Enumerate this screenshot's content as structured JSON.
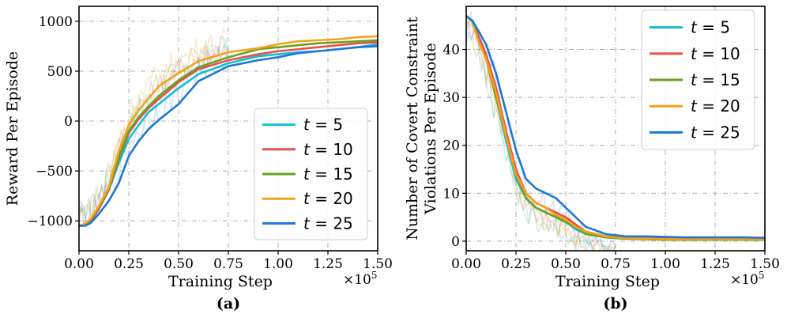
{
  "chart_data": [
    {
      "type": "line",
      "panel": "a",
      "caption": "(a)",
      "xlabel": "Training Step",
      "ylabel": "Reward Per Episode",
      "x_multiplier": "×10",
      "x_multiplier_exp": "5",
      "xlim": [
        0,
        1.5
      ],
      "ylim": [
        -1300,
        1150
      ],
      "xticks": [
        0,
        0.25,
        0.5,
        0.75,
        1.0,
        1.25,
        1.5
      ],
      "xtick_labels": [
        "0.00",
        "0.25",
        "0.50",
        "0.75",
        "1.00",
        "1.25",
        "1.50"
      ],
      "yticks": [
        -1000,
        -500,
        0,
        500,
        1000
      ],
      "ytick_labels": [
        "−1000",
        "−500",
        "0",
        "500",
        "1000"
      ],
      "legend_position": "lower-right",
      "x": [
        0,
        0.03,
        0.06,
        0.1,
        0.15,
        0.2,
        0.25,
        0.3,
        0.35,
        0.4,
        0.5,
        0.6,
        0.75,
        0.9,
        1.0,
        1.1,
        1.2,
        1.3,
        1.4,
        1.5
      ],
      "series": [
        {
          "name": "t = 5",
          "label_var": "t",
          "label_val": "5",
          "color": "#17becf",
          "values": [
            -1050,
            -1040,
            -1010,
            -880,
            -690,
            -420,
            -180,
            -40,
            90,
            170,
            330,
            470,
            580,
            650,
            670,
            690,
            700,
            720,
            740,
            770
          ]
        },
        {
          "name": "t = 10",
          "label_var": "t",
          "label_val": "10",
          "color": "#e8504a",
          "values": [
            -1050,
            -1040,
            -1000,
            -880,
            -690,
            -380,
            -120,
            20,
            130,
            220,
            390,
            520,
            610,
            670,
            700,
            720,
            740,
            760,
            780,
            790
          ]
        },
        {
          "name": "t = 15",
          "label_var": "t",
          "label_val": "15",
          "color": "#6aa121",
          "values": [
            -1050,
            -1040,
            -990,
            -860,
            -680,
            -360,
            -100,
            40,
            150,
            250,
            410,
            540,
            640,
            720,
            740,
            760,
            780,
            790,
            800,
            810
          ]
        },
        {
          "name": "t = 20",
          "label_var": "t",
          "label_val": "20",
          "color": "#f4a11a",
          "values": [
            -1050,
            -1030,
            -980,
            -850,
            -660,
            -300,
            -40,
            110,
            230,
            350,
            480,
            600,
            690,
            730,
            770,
            800,
            810,
            820,
            840,
            850
          ]
        },
        {
          "name": "t = 25",
          "label_var": "t",
          "label_val": "25",
          "color": "#1f77d4",
          "values": [
            -1050,
            -1050,
            -1020,
            -930,
            -800,
            -620,
            -350,
            -200,
            -80,
            10,
            170,
            400,
            550,
            610,
            640,
            680,
            700,
            720,
            740,
            750
          ]
        }
      ]
    },
    {
      "type": "line",
      "panel": "b",
      "caption": "(b)",
      "xlabel": "Training Step",
      "ylabel_line1": "Number of Covert Constraint",
      "ylabel_line2": "Violations Per Episode",
      "x_multiplier": "×10",
      "x_multiplier_exp": "5",
      "xlim": [
        0,
        1.5
      ],
      "ylim": [
        -2,
        49
      ],
      "xticks": [
        0,
        0.25,
        0.5,
        0.75,
        1.0,
        1.25,
        1.5
      ],
      "xtick_labels": [
        "0.00",
        "0.25",
        "0.50",
        "0.75",
        "1.00",
        "1.25",
        "1.50"
      ],
      "yticks": [
        0,
        10,
        20,
        30,
        40
      ],
      "ytick_labels": [
        "0",
        "10",
        "20",
        "30",
        "40"
      ],
      "legend_position": "upper-right",
      "x": [
        0,
        0.03,
        0.06,
        0.1,
        0.15,
        0.2,
        0.25,
        0.3,
        0.35,
        0.4,
        0.45,
        0.5,
        0.55,
        0.6,
        0.7,
        0.8,
        0.9,
        1.0,
        1.1,
        1.2,
        1.3,
        1.4,
        1.5
      ],
      "series": [
        {
          "name": "t = 5",
          "label_var": "t",
          "label_val": "5",
          "color": "#17becf",
          "values": [
            47,
            46,
            43,
            38,
            30,
            21,
            13,
            9,
            7,
            6,
            5,
            4,
            2.5,
            1.5,
            0.8,
            0.5,
            0.4,
            0.3,
            0.3,
            0.3,
            0.3,
            0.3,
            0.3
          ]
        },
        {
          "name": "t = 10",
          "label_var": "t",
          "label_val": "10",
          "color": "#e8504a",
          "values": [
            47,
            46,
            43,
            39,
            32,
            23,
            15,
            10,
            8,
            7,
            6,
            5,
            3.5,
            2,
            1,
            0.8,
            0.6,
            0.5,
            0.5,
            0.5,
            0.5,
            0.5,
            0.5
          ]
        },
        {
          "name": "t = 15",
          "label_var": "t",
          "label_val": "15",
          "color": "#6aa121",
          "values": [
            47,
            46,
            42,
            38,
            30,
            22,
            14,
            9,
            7,
            6,
            5,
            4,
            3,
            1.5,
            0.8,
            0.5,
            0.4,
            0.3,
            0.3,
            0.3,
            0.3,
            0.3,
            0.3
          ]
        },
        {
          "name": "t = 20",
          "label_var": "t",
          "label_val": "20",
          "color": "#f4a11a",
          "values": [
            47,
            46,
            42,
            38,
            31,
            22,
            14,
            10,
            8,
            7,
            5.5,
            4.5,
            3,
            2,
            1,
            0.6,
            0.5,
            0.4,
            0.4,
            0.4,
            0.4,
            0.4,
            0.4
          ]
        },
        {
          "name": "t = 25",
          "label_var": "t",
          "label_val": "25",
          "color": "#1f77d4",
          "values": [
            47,
            46,
            44,
            41,
            35,
            27,
            19,
            13,
            11,
            10,
            9,
            7,
            5,
            3,
            1.5,
            1,
            1,
            0.9,
            0.8,
            0.8,
            0.8,
            0.8,
            0.7
          ]
        }
      ]
    }
  ]
}
